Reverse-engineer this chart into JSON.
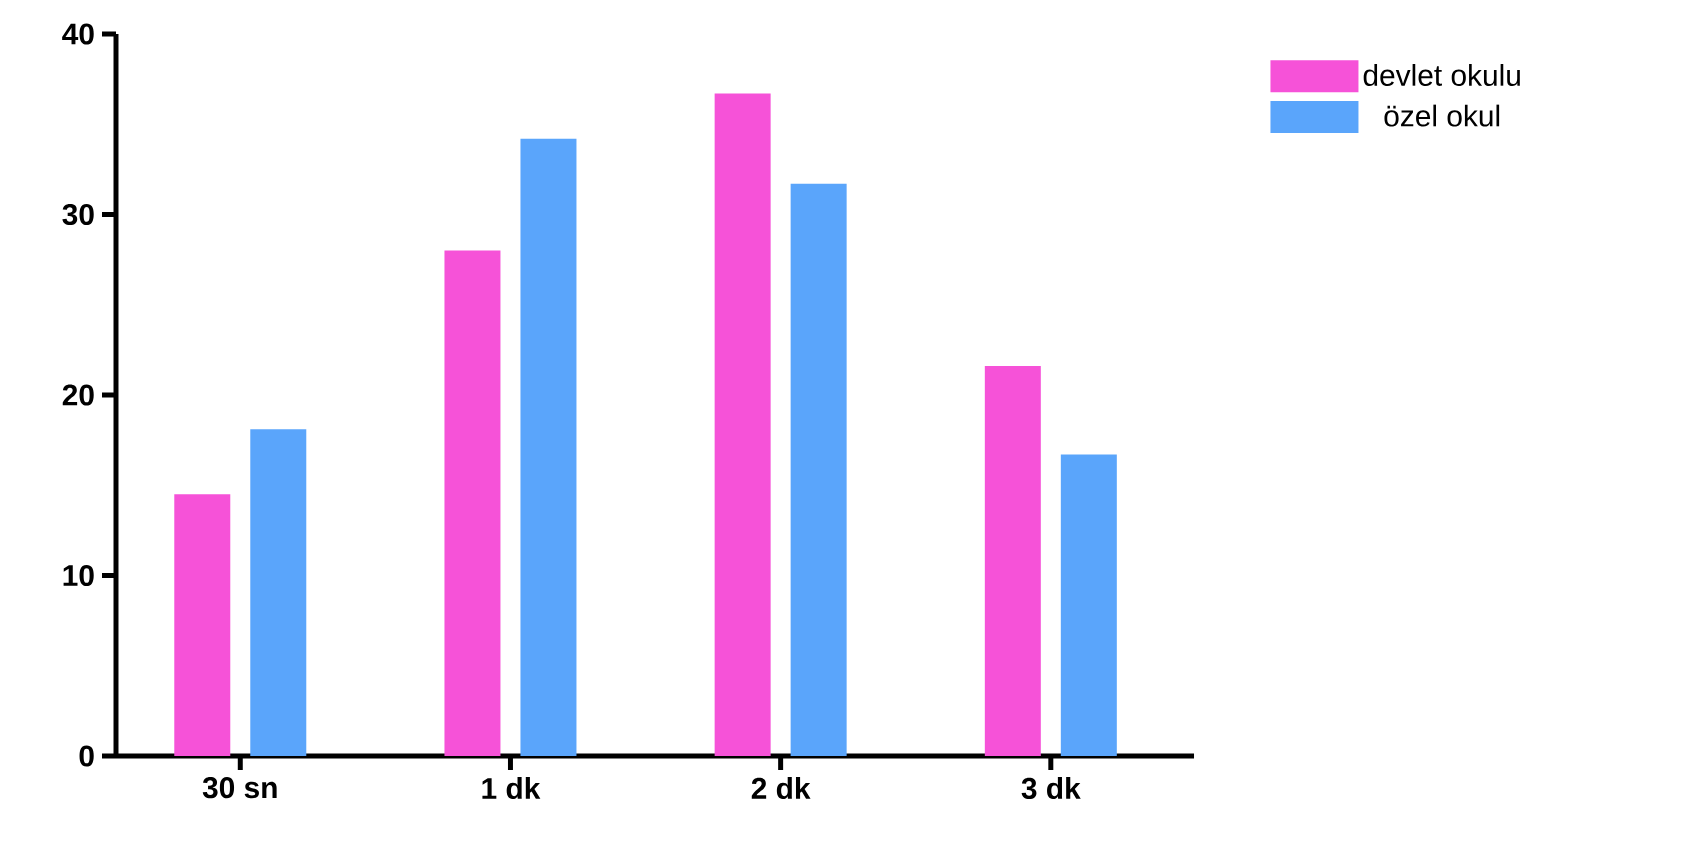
{
  "chart_data": {
    "type": "bar",
    "categories": [
      "30 sn",
      "1 dk",
      "2 dk",
      "3 dk"
    ],
    "series": [
      {
        "name": "devlet okulu",
        "color": "#f652d8",
        "values": [
          14.5,
          28.0,
          36.7,
          21.6
        ]
      },
      {
        "name": "özel okul",
        "color": "#5aa5fb",
        "values": [
          18.1,
          34.2,
          31.7,
          16.7
        ]
      }
    ],
    "ylim": [
      0,
      40
    ],
    "yticks": [
      0,
      10,
      20,
      30,
      40
    ],
    "grid": false,
    "legend": "top right"
  }
}
